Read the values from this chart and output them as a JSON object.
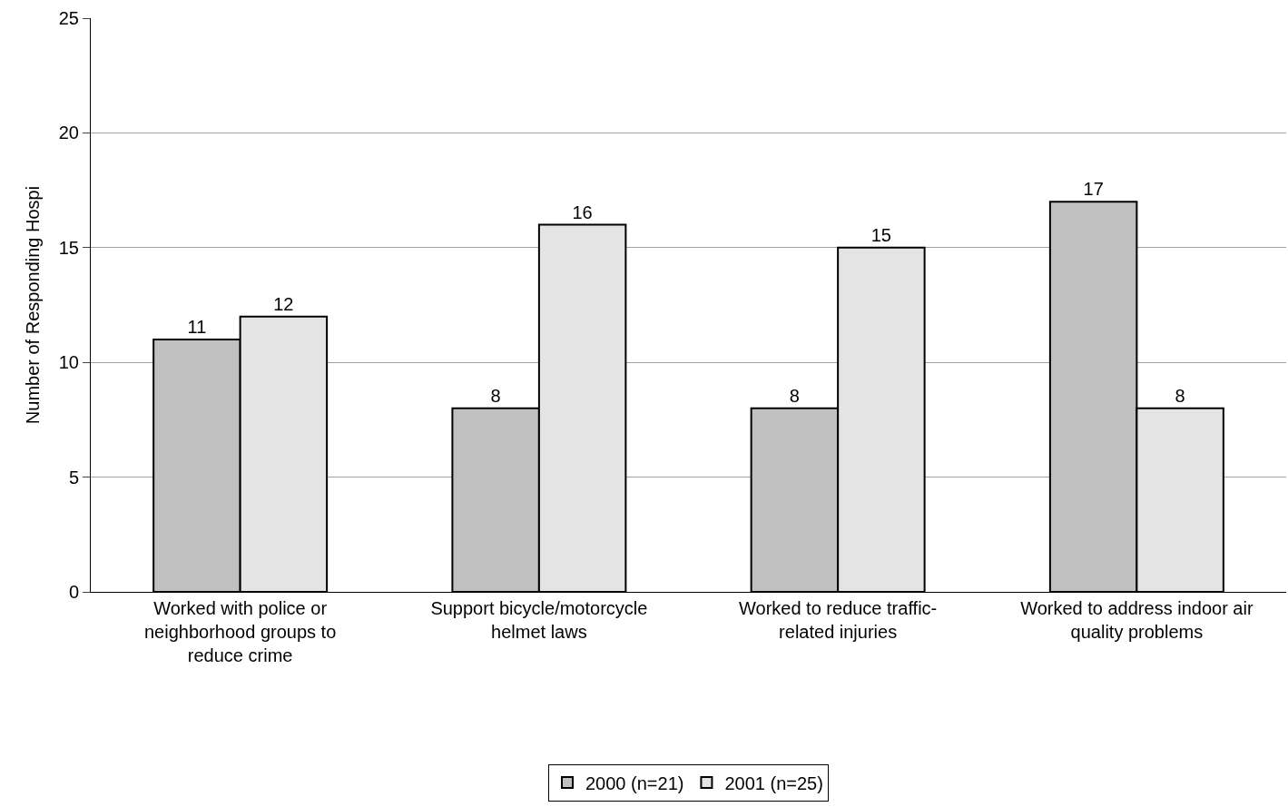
{
  "chart_data": {
    "type": "bar",
    "ylabel": "Number of Responding Hospi",
    "categories": [
      "Worked with police or neighborhood groups to reduce crime",
      "Support bicycle/motorcycle helmet laws",
      "Worked to reduce traffic-related injuries",
      "Worked to address indoor air quality problems"
    ],
    "series": [
      {
        "name": "2000 (n=21)",
        "color": "#c0c0c0",
        "values": [
          11,
          8,
          8,
          17
        ]
      },
      {
        "name": "2001 (n=25)",
        "color": "#e4e4e4",
        "values": [
          12,
          16,
          15,
          8
        ]
      }
    ],
    "ylim": [
      0,
      25
    ],
    "yticks": [
      0,
      5,
      10,
      15,
      20,
      25
    ],
    "grid": "y",
    "legend": "bottom",
    "data_labels": true
  }
}
